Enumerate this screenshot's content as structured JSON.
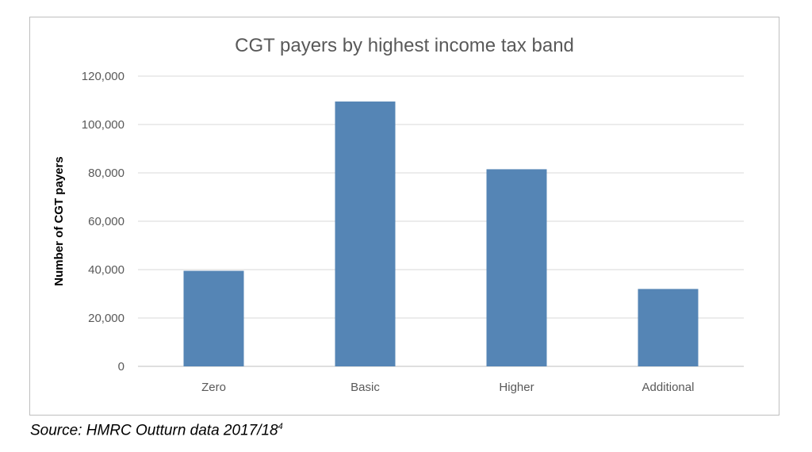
{
  "chart_data": {
    "type": "bar",
    "title": "CGT payers by highest income tax band",
    "xlabel": "",
    "ylabel": "Number of CGT payers",
    "categories": [
      "Zero",
      "Basic",
      "Higher",
      "Additional"
    ],
    "values": [
      39500,
      109500,
      81500,
      32000
    ],
    "ylim": [
      0,
      120000
    ],
    "yticks": [
      0,
      20000,
      40000,
      60000,
      80000,
      100000,
      120000
    ],
    "ytick_labels": [
      "0",
      "20,000",
      "40,000",
      "60,000",
      "80,000",
      "100,000",
      "120,000"
    ],
    "grid": true,
    "legend": "none",
    "bar_color": "#5585b5"
  },
  "source": {
    "text": "Source: HMRC Outturn data 2017/18",
    "footnote": "4"
  }
}
